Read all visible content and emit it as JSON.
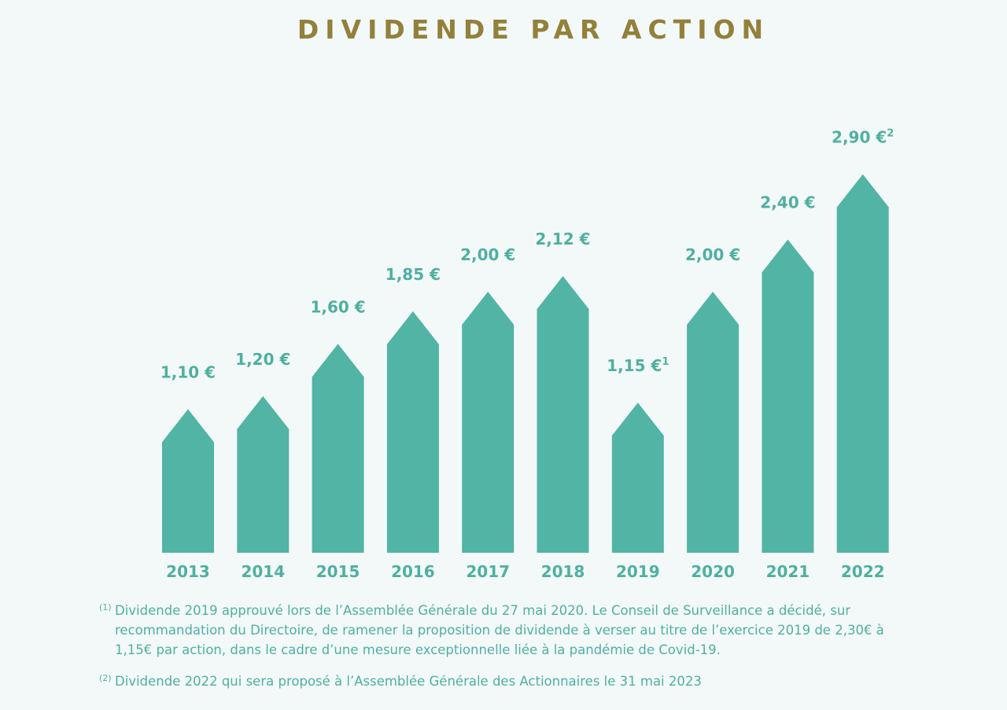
{
  "chart_data": {
    "type": "bar",
    "title": "DIVIDENDE PAR ACTION",
    "categories": [
      "2013",
      "2014",
      "2015",
      "2016",
      "2017",
      "2018",
      "2019",
      "2020",
      "2021",
      "2022"
    ],
    "values": [
      1.1,
      1.2,
      1.6,
      1.85,
      2.0,
      2.12,
      1.15,
      2.0,
      2.4,
      2.9
    ],
    "value_labels": [
      "1,10 €",
      "1,20 €",
      "1,60 €",
      "1,85 €",
      "2,00 €",
      "2,12  €",
      "1,15 €",
      "2,00 €",
      "2,40 €",
      "2,90 €"
    ],
    "value_label_superscripts": [
      "",
      "",
      "",
      "",
      "",
      "",
      "1",
      "",
      "",
      "2"
    ],
    "unit": "€",
    "xlabel": "",
    "ylabel": "",
    "ylim": [
      0,
      3.0
    ],
    "bar_color": "#52b4a4",
    "label_color": "#4fb0a0"
  },
  "footnotes": [
    {
      "mark": "(1)",
      "text": "Dividende 2019 approuvé lors de l’Assemblée Générale du 27 mai 2020. Le Conseil de Surveillance a décidé, sur recommandation du Directoire, de ramener la proposition de dividende à verser au titre de l’exercice 2019 de 2,30€ à 1,15€ par action, dans le cadre d’une mesure exceptionnelle liée à la pandémie de Covid-19."
    },
    {
      "mark": "(2)",
      "text": "Dividende 2022 qui sera proposé à l’Assemblée Générale des Actionnaires le 31 mai 2023"
    }
  ],
  "colors": {
    "title": "#93803a",
    "accent": "#52b4a4",
    "background": "#f3f9f9"
  }
}
